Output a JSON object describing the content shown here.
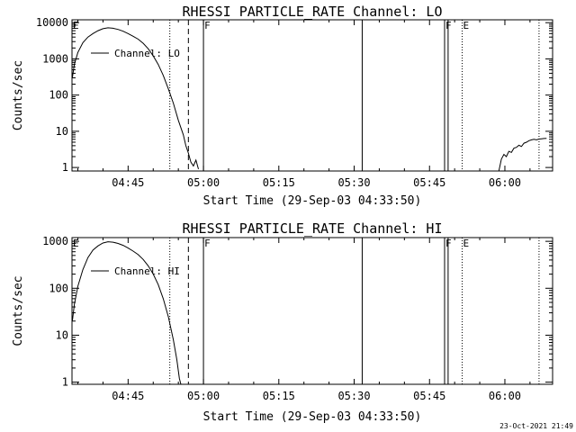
{
  "chart_data": [
    {
      "type": "line",
      "title": "RHESSI PARTICLE_RATE Channel: LO",
      "xlabel": "Start Time (29-Sep-03 04:33:50)",
      "ylabel": "Counts/sec",
      "yscale": "log",
      "xlim": [
        3.83,
        99.5
      ],
      "ylim": [
        0.8,
        12000
      ],
      "xticks": [
        {
          "v": 15,
          "label": "04:45"
        },
        {
          "v": 30,
          "label": "05:00"
        },
        {
          "v": 45,
          "label": "05:15"
        },
        {
          "v": 60,
          "label": "05:30"
        },
        {
          "v": 75,
          "label": "05:45"
        },
        {
          "v": 90,
          "label": "06:00"
        }
      ],
      "yticks": [
        {
          "v": 1,
          "label": "1"
        },
        {
          "v": 10,
          "label": "10"
        },
        {
          "v": 100,
          "label": "100"
        },
        {
          "v": 1000,
          "label": "1000"
        },
        {
          "v": 10000,
          "label": "10000"
        }
      ],
      "legend": {
        "position": "top-left",
        "entries": [
          "Channel: LO"
        ]
      },
      "series": [
        {
          "name": "Channel: LO",
          "segments": [
            [
              [
                3.9,
                300
              ],
              [
                4.3,
                700
              ],
              [
                5,
                1500
              ],
              [
                6,
                2800
              ],
              [
                7,
                4000
              ],
              [
                8,
                5000
              ],
              [
                9,
                6000
              ],
              [
                10,
                6800
              ],
              [
                11,
                7200
              ],
              [
                12,
                7000
              ],
              [
                13,
                6500
              ],
              [
                14,
                5800
              ],
              [
                15,
                5000
              ],
              [
                16,
                4200
              ],
              [
                17,
                3500
              ],
              [
                18,
                2700
              ],
              [
                19,
                1900
              ],
              [
                20,
                1200
              ],
              [
                21,
                700
              ],
              [
                22,
                350
              ],
              [
                23,
                150
              ],
              [
                24,
                60
              ],
              [
                25,
                20
              ],
              [
                26,
                8
              ],
              [
                26.5,
                4
              ],
              [
                27,
                2.5
              ],
              [
                27.5,
                1.4
              ],
              [
                28,
                1.1
              ],
              [
                28.5,
                1.6
              ],
              [
                29,
                0.9
              ]
            ],
            [
              [
                88.8,
                0.8
              ],
              [
                89.3,
                1.7
              ],
              [
                89.8,
                2.3
              ],
              [
                90.3,
                2.0
              ],
              [
                90.8,
                2.8
              ],
              [
                91.3,
                2.6
              ],
              [
                91.8,
                3.4
              ],
              [
                92.3,
                3.6
              ],
              [
                92.8,
                4.1
              ],
              [
                93.3,
                3.8
              ],
              [
                93.8,
                4.7
              ],
              [
                94.3,
                5.0
              ],
              [
                94.8,
                5.5
              ],
              [
                95.3,
                5.8
              ],
              [
                95.8,
                6.0
              ],
              [
                96.3,
                5.8
              ],
              [
                96.8,
                6.1
              ],
              [
                97.3,
                6.2
              ],
              [
                97.8,
                6.3
              ],
              [
                98.3,
                6.4
              ]
            ]
          ]
        }
      ],
      "vlines": [
        {
          "x": 23.3,
          "style": "dotted"
        },
        {
          "x": 27.0,
          "style": "dashed"
        },
        {
          "x": 30.0,
          "style": "solid",
          "label": "F"
        },
        {
          "x": 61.6,
          "style": "solid"
        },
        {
          "x": 78.0,
          "style": "solid",
          "label": "F"
        },
        {
          "x": 78.7,
          "style": "solid"
        },
        {
          "x": 81.5,
          "style": "dotted",
          "label": "E"
        },
        {
          "x": 96.8,
          "style": "dotted"
        }
      ],
      "edge_marker": "E"
    },
    {
      "type": "line",
      "title": "RHESSI PARTICLE_RATE Channel: HI",
      "xlabel": "Start Time (29-Sep-03 04:33:50)",
      "ylabel": "Counts/sec",
      "yscale": "log",
      "xlim": [
        3.83,
        99.5
      ],
      "ylim": [
        0.9,
        1200
      ],
      "xticks": [
        {
          "v": 15,
          "label": "04:45"
        },
        {
          "v": 30,
          "label": "05:00"
        },
        {
          "v": 45,
          "label": "05:15"
        },
        {
          "v": 60,
          "label": "05:30"
        },
        {
          "v": 75,
          "label": "05:45"
        },
        {
          "v": 90,
          "label": "06:00"
        }
      ],
      "yticks": [
        {
          "v": 1,
          "label": "1"
        },
        {
          "v": 10,
          "label": "10"
        },
        {
          "v": 100,
          "label": "100"
        },
        {
          "v": 1000,
          "label": "1000"
        }
      ],
      "legend": {
        "position": "top-left",
        "entries": [
          "Channel: HI"
        ]
      },
      "series": [
        {
          "name": "Channel: HI",
          "segments": [
            [
              [
                3.9,
                20
              ],
              [
                4.3,
                45
              ],
              [
                5,
                110
              ],
              [
                6,
                250
              ],
              [
                7,
                450
              ],
              [
                8,
                650
              ],
              [
                9,
                800
              ],
              [
                10,
                920
              ],
              [
                11,
                980
              ],
              [
                12,
                960
              ],
              [
                13,
                900
              ],
              [
                14,
                820
              ],
              [
                15,
                720
              ],
              [
                16,
                620
              ],
              [
                17,
                520
              ],
              [
                18,
                410
              ],
              [
                19,
                300
              ],
              [
                20,
                200
              ],
              [
                21,
                120
              ],
              [
                22,
                60
              ],
              [
                23,
                25
              ],
              [
                24,
                8
              ],
              [
                24.7,
                3
              ],
              [
                25.2,
                1.2
              ],
              [
                25.5,
                0.9
              ]
            ]
          ]
        }
      ],
      "vlines": [
        {
          "x": 23.3,
          "style": "dotted"
        },
        {
          "x": 27.0,
          "style": "dashed"
        },
        {
          "x": 30.0,
          "style": "solid",
          "label": "F"
        },
        {
          "x": 61.6,
          "style": "solid"
        },
        {
          "x": 78.0,
          "style": "solid",
          "label": "F"
        },
        {
          "x": 78.7,
          "style": "solid"
        },
        {
          "x": 81.5,
          "style": "dotted",
          "label": "E"
        },
        {
          "x": 96.8,
          "style": "dotted"
        }
      ],
      "edge_marker": "E"
    }
  ],
  "footer": "23-Oct-2021 21:49"
}
